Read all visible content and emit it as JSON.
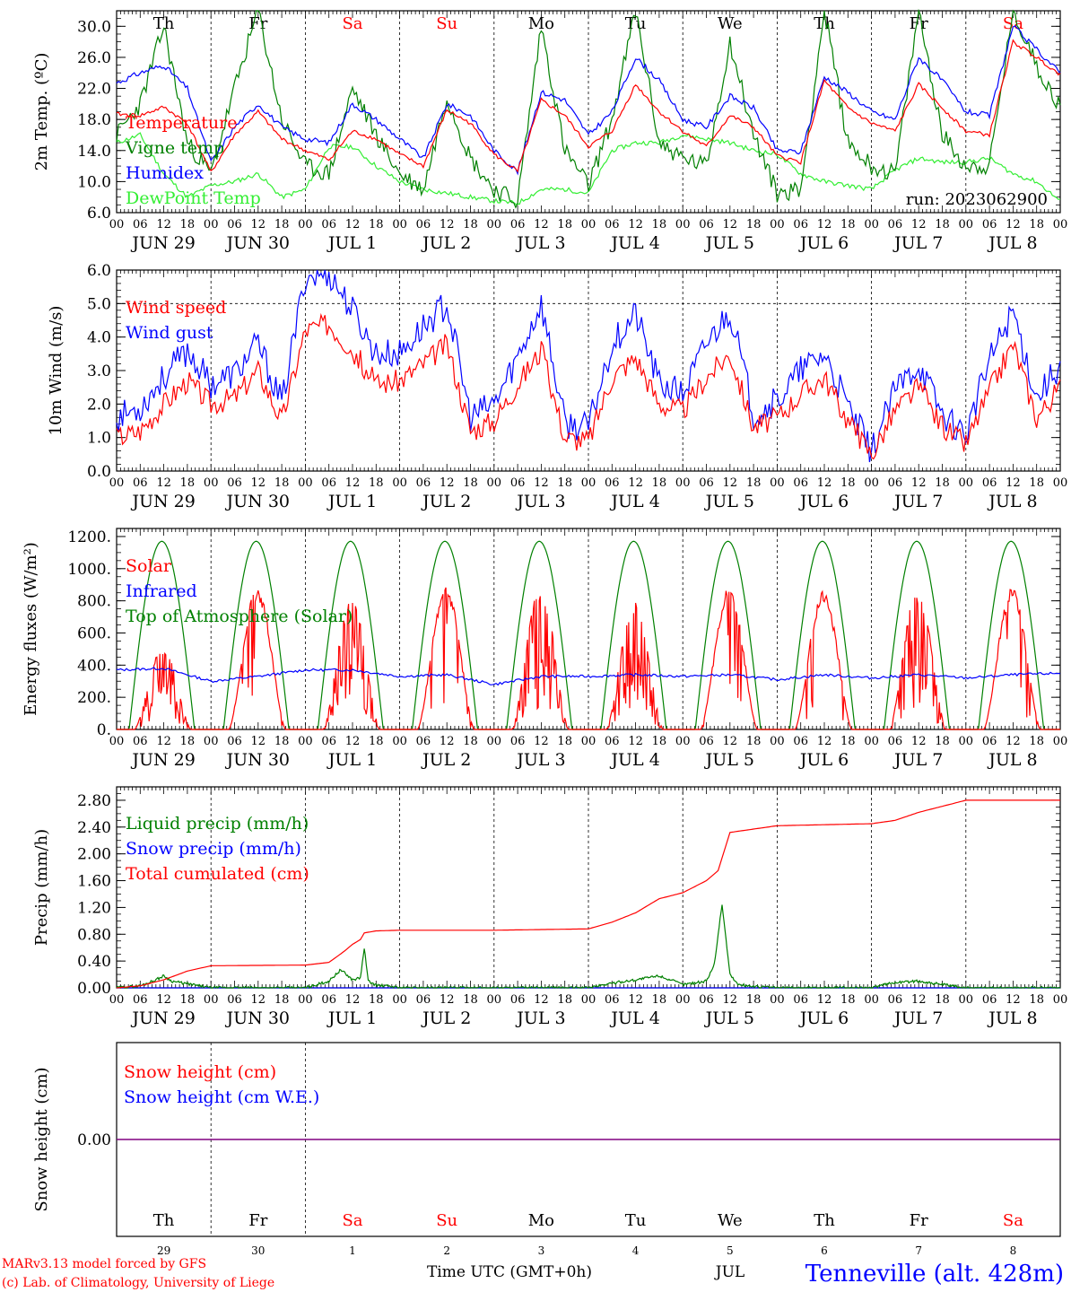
{
  "colors": {
    "red": "#ff0000",
    "green": "#008000",
    "blue": "#0000ff",
    "lightgreen": "#33ee33",
    "purple": "#800080",
    "black": "#000000"
  },
  "axis": {
    "hour_labels": [
      "00",
      "06",
      "12",
      "18"
    ],
    "final_hour_label": "00",
    "date_labels": [
      "JUN 29",
      "JUN 30",
      "JUL 1",
      "JUL 2",
      "JUL 3",
      "JUL 4",
      "JUL 5",
      "JUL 6",
      "JUL 7",
      "JUL 8"
    ],
    "weekdays": [
      "Th",
      "Fr",
      "Sa",
      "Su",
      "Mo",
      "Tu",
      "We",
      "Th",
      "Fr",
      "Sa"
    ],
    "weekend_flags": [
      false,
      false,
      true,
      true,
      false,
      false,
      false,
      false,
      false,
      true
    ],
    "bottom_day_numbers": [
      "29",
      "30",
      "1",
      "2",
      "3",
      "4",
      "5",
      "6",
      "7",
      "8"
    ]
  },
  "footer": {
    "model_line": "MARv3.13 model forced by GFS",
    "credit_line": "(c) Lab. of Climatology, University of Liege",
    "time_label": "Time UTC (GMT+0h)",
    "month_label": "JUL",
    "station": "Tenneville (alt. 428m)"
  },
  "chart_data": [
    {
      "id": "temperature",
      "type": "line",
      "ylabel": "2m Temp. (ºC)",
      "ylim": [
        6,
        32
      ],
      "yticks": [
        "6.0",
        "10.0",
        "14.0",
        "18.0",
        "22.0",
        "26.0",
        "30.0"
      ],
      "run_label": "run: 2023062900",
      "x_unit": "hours since 00 UTC JUN 29",
      "series": [
        {
          "name": "Temperature",
          "color": "#ff0000",
          "x": [
            0,
            6,
            12,
            18,
            24,
            30,
            36,
            42,
            48,
            54,
            60,
            66,
            72,
            78,
            84,
            90,
            96,
            102,
            108,
            114,
            120,
            126,
            132,
            138,
            144,
            150,
            156,
            162,
            168,
            174,
            180,
            186,
            192,
            198,
            204,
            210,
            216,
            222,
            228,
            234,
            240
          ],
          "y": [
            18.7,
            18.5,
            19.6,
            17.5,
            11.2,
            16,
            19,
            15.5,
            14,
            12.8,
            16.5,
            15.5,
            13.5,
            12,
            19.2,
            17.5,
            13.5,
            11.3,
            20.5,
            18.5,
            14.5,
            16.5,
            22.5,
            19,
            16.5,
            14.5,
            18.5,
            17,
            13.3,
            12.5,
            23,
            19.5,
            17.5,
            16.5,
            22.5,
            19.5,
            16.5,
            16,
            28,
            26,
            23.8
          ]
        },
        {
          "name": "Vigne temp",
          "color": "#008000",
          "x": [
            0,
            6,
            12,
            18,
            24,
            30,
            36,
            42,
            48,
            54,
            60,
            66,
            72,
            78,
            84,
            90,
            96,
            102,
            108,
            114,
            120,
            126,
            132,
            138,
            144,
            150,
            156,
            162,
            168,
            174,
            180,
            186,
            192,
            198,
            204,
            210,
            216,
            222,
            228,
            234,
            240
          ],
          "y": [
            16,
            20,
            30,
            15,
            11,
            22,
            32,
            18,
            12,
            11,
            22,
            16,
            11,
            9,
            21,
            13,
            9,
            7.5,
            30,
            14,
            9.5,
            18,
            32,
            15,
            13,
            12,
            28,
            16,
            8.5,
            9,
            32,
            15,
            12,
            11,
            32,
            16,
            12,
            12,
            32,
            25,
            19.5
          ]
        },
        {
          "name": "Humidex",
          "color": "#0000ff",
          "x": [
            0,
            6,
            12,
            18,
            24,
            30,
            36,
            42,
            48,
            54,
            60,
            66,
            72,
            78,
            84,
            90,
            96,
            102,
            108,
            114,
            120,
            126,
            132,
            138,
            144,
            150,
            156,
            162,
            168,
            174,
            180,
            186,
            192,
            198,
            204,
            210,
            216,
            222,
            228,
            234,
            240
          ],
          "y": [
            22.7,
            24,
            25,
            22,
            12.5,
            17,
            20,
            17,
            15.5,
            15,
            20,
            18,
            15.5,
            13,
            20,
            18.5,
            14,
            11.3,
            21.5,
            20.5,
            16,
            19,
            26,
            23,
            18,
            17,
            21,
            19.5,
            14,
            13.8,
            23.5,
            21.5,
            19,
            18,
            26,
            23,
            19,
            18.5,
            30,
            27,
            24
          ]
        },
        {
          "name": "DewPoint Temp",
          "color": "#33ee33",
          "x": [
            0,
            6,
            12,
            18,
            24,
            30,
            36,
            42,
            48,
            54,
            60,
            66,
            72,
            78,
            84,
            90,
            96,
            102,
            108,
            114,
            120,
            126,
            132,
            138,
            144,
            150,
            156,
            162,
            168,
            174,
            180,
            186,
            192,
            198,
            204,
            210,
            216,
            222,
            228,
            234,
            240
          ],
          "y": [
            15,
            16,
            11,
            8,
            9.5,
            10,
            11,
            8,
            9,
            14.5,
            14.5,
            12,
            10,
            9,
            8.5,
            8,
            7.5,
            7.2,
            9,
            9,
            8.5,
            14,
            15,
            15,
            16,
            15.5,
            15,
            14,
            13.5,
            11,
            10,
            9.5,
            9,
            11.5,
            13,
            12.5,
            12.5,
            13,
            11,
            10,
            7.5
          ]
        }
      ]
    },
    {
      "id": "wind",
      "type": "line",
      "ylabel": "10m Wind (m/s)",
      "ylim": [
        0,
        6
      ],
      "yticks": [
        "0.0",
        "1.0",
        "2.0",
        "3.0",
        "4.0",
        "5.0",
        "6.0"
      ],
      "ref_line": 5,
      "x_unit": "hours since 00 UTC JUN 29",
      "series": [
        {
          "name": "Wind speed",
          "color": "#ff0000",
          "x": [
            0,
            6,
            12,
            18,
            24,
            30,
            36,
            42,
            48,
            54,
            60,
            66,
            72,
            78,
            84,
            90,
            96,
            102,
            108,
            114,
            120,
            126,
            132,
            138,
            144,
            150,
            156,
            162,
            168,
            174,
            180,
            186,
            192,
            198,
            204,
            210,
            216,
            222,
            228,
            234,
            240
          ],
          "y": [
            1,
            1.2,
            2,
            2.7,
            2,
            2.2,
            3,
            1.5,
            4.2,
            4.4,
            3.6,
            2.6,
            2.7,
            3.2,
            3.8,
            1.2,
            1.5,
            2.6,
            3.6,
            1,
            0.9,
            2.8,
            3.4,
            2,
            1.8,
            2.8,
            3.5,
            1.3,
            1.6,
            2.3,
            2.8,
            1.5,
            0.5,
            1.8,
            2.5,
            1.3,
            0.8,
            2.4,
            3.8,
            1.6,
            2.5
          ]
        },
        {
          "name": "Wind gust",
          "color": "#0000ff",
          "x": [
            0,
            6,
            12,
            18,
            24,
            30,
            36,
            42,
            48,
            54,
            60,
            66,
            72,
            78,
            84,
            90,
            96,
            102,
            108,
            114,
            120,
            126,
            132,
            138,
            144,
            150,
            156,
            162,
            168,
            174,
            180,
            186,
            192,
            198,
            204,
            210,
            216,
            222,
            228,
            234,
            240
          ],
          "y": [
            1.6,
            1.9,
            2.8,
            3.6,
            2.6,
            2.9,
            3.8,
            2,
            5.8,
            5.9,
            4.8,
            3.5,
            3.5,
            4.3,
            5,
            1.6,
            2,
            3.4,
            5,
            1.4,
            1.3,
            3.8,
            4.7,
            2.6,
            2.3,
            3.8,
            4.8,
            1.7,
            2.1,
            3,
            3.5,
            1.9,
            0.6,
            2.4,
            3.2,
            1.7,
            1.1,
            3.3,
            4.8,
            2.2,
            3.2
          ]
        }
      ]
    },
    {
      "id": "energy",
      "type": "line",
      "ylabel": "Energy fluxes (W/m²)",
      "ylim": [
        0,
        1250
      ],
      "yticks": [
        "0.",
        "200.",
        "400.",
        "600.",
        "800.",
        "1000.",
        "1200."
      ],
      "x_unit": "hours since 00 UTC JUN 29",
      "series": [
        {
          "name": "Solar",
          "color": "#ff0000",
          "day_peaks": [
            520,
            880,
            800,
            890,
            880,
            800,
            880,
            870,
            870,
            880
          ]
        },
        {
          "name": "Infrared",
          "color": "#0000ff",
          "x": [
            0,
            12,
            24,
            36,
            48,
            60,
            72,
            84,
            96,
            108,
            120,
            132,
            144,
            156,
            168,
            180,
            192,
            204,
            216,
            228,
            240
          ],
          "y": [
            370,
            380,
            300,
            330,
            370,
            370,
            330,
            340,
            280,
            330,
            330,
            340,
            330,
            340,
            310,
            340,
            320,
            340,
            320,
            340,
            350
          ]
        },
        {
          "name": "Top of Atmosphere (Solar)",
          "color": "#008000",
          "day_peak": 1170
        }
      ]
    },
    {
      "id": "precip",
      "type": "line",
      "ylabel": "Precip (mm/h)",
      "ylim": [
        0,
        3.0
      ],
      "yticks": [
        "0.00",
        "0.40",
        "0.80",
        "1.20",
        "1.60",
        "2.00",
        "2.40",
        "2.80"
      ],
      "x_unit": "hours since 00 UTC JUN 29",
      "series": [
        {
          "name": "Liquid precip (mm/h)",
          "color": "#008000",
          "x": [
            0,
            6,
            10,
            12,
            14,
            18,
            22,
            24,
            36,
            48,
            54,
            57,
            60,
            62,
            63,
            64,
            66,
            70,
            72,
            96,
            120,
            126,
            132,
            138,
            144,
            150,
            152,
            154,
            156,
            158,
            162,
            168,
            192,
            198,
            204,
            210,
            216,
            240
          ],
          "y": [
            0,
            0.03,
            0.12,
            0.18,
            0.1,
            0.06,
            0.02,
            0,
            0,
            0,
            0.1,
            0.27,
            0.12,
            0.15,
            0.6,
            0.1,
            0.04,
            0.02,
            0,
            0,
            0,
            0.07,
            0.12,
            0.18,
            0.05,
            0.1,
            0.35,
            1.25,
            0.2,
            0.05,
            0.02,
            0,
            0,
            0.08,
            0.1,
            0.05,
            0,
            0
          ]
        },
        {
          "name": "Snow precip (mm/h)",
          "color": "#0000ff",
          "x": [
            0,
            240
          ],
          "y": [
            0,
            0
          ]
        },
        {
          "name": "Total cumulated (cm)",
          "color": "#ff0000",
          "x": [
            0,
            6,
            12,
            18,
            24,
            48,
            54,
            58,
            60,
            62,
            63,
            66,
            72,
            96,
            120,
            126,
            132,
            138,
            144,
            150,
            153,
            156,
            168,
            192,
            198,
            204,
            216,
            240
          ],
          "y": [
            0,
            0.03,
            0.12,
            0.25,
            0.33,
            0.34,
            0.38,
            0.55,
            0.65,
            0.72,
            0.82,
            0.85,
            0.86,
            0.86,
            0.88,
            0.98,
            1.12,
            1.33,
            1.42,
            1.6,
            1.75,
            2.32,
            2.42,
            2.45,
            2.5,
            2.62,
            2.8,
            2.8
          ]
        }
      ]
    },
    {
      "id": "snow",
      "type": "line",
      "ylabel": "Snow height (cm)",
      "ylim": [
        -1,
        1
      ],
      "yticks": [
        "0.00"
      ],
      "x_unit": "hours since 00 UTC JUN 29",
      "series": [
        {
          "name": "Snow height (cm)",
          "color": "#ff0000",
          "x": [
            0,
            240
          ],
          "y": [
            0,
            0
          ]
        },
        {
          "name": "Snow height (cm W.E.)",
          "color": "#0000ff",
          "x": [
            0,
            240
          ],
          "y": [
            0,
            0
          ]
        }
      ]
    }
  ]
}
